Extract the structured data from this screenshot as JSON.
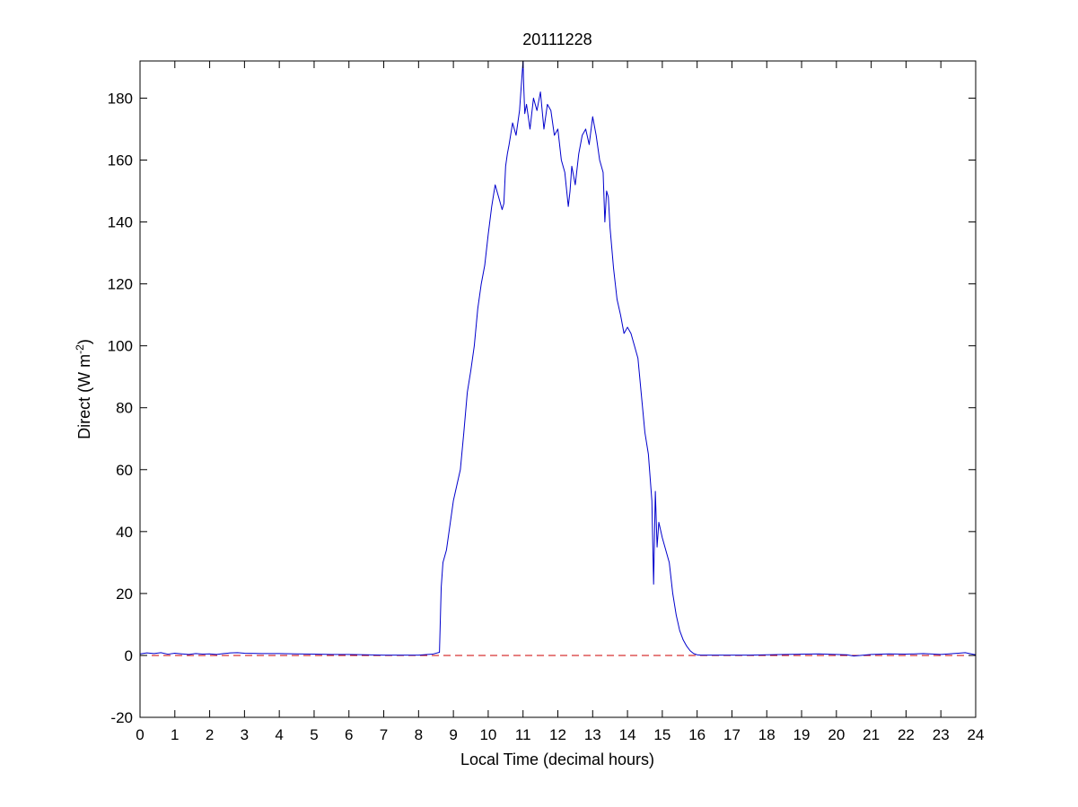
{
  "chart_data": {
    "type": "line",
    "title": "20111228",
    "xlabel": "Local Time (decimal hours)",
    "ylabel": {
      "prefix": "Direct (W m",
      "superscript": "-2",
      "suffix": ")"
    },
    "xlim": [
      0,
      24
    ],
    "ylim": [
      -20,
      192
    ],
    "xticks": [
      0,
      1,
      2,
      3,
      4,
      5,
      6,
      7,
      8,
      9,
      10,
      11,
      12,
      13,
      14,
      15,
      16,
      17,
      18,
      19,
      20,
      21,
      22,
      23,
      24
    ],
    "yticks": [
      -20,
      0,
      20,
      40,
      60,
      80,
      100,
      120,
      140,
      160,
      180
    ],
    "grid": false,
    "colors": {
      "series": "#0000cc",
      "reference_line": "#cc0000",
      "axes": "#000000"
    },
    "reference_line": {
      "y": 0,
      "style": "dashed"
    },
    "series": [
      {
        "x": [
          0,
          0.2,
          0.4,
          0.6,
          0.8,
          1.0,
          1.2,
          1.4,
          1.6,
          1.8,
          2.0,
          2.2,
          2.4,
          2.6,
          2.8,
          3.0,
          3.5,
          4.0,
          4.5,
          5.0,
          5.5,
          6.0,
          6.5,
          7.0,
          7.5,
          8.0,
          8.4,
          8.6,
          8.65,
          8.7,
          8.8,
          8.9,
          9.0,
          9.1,
          9.2,
          9.3,
          9.4,
          9.5,
          9.6,
          9.7,
          9.8,
          9.9,
          10.0,
          10.1,
          10.2,
          10.3,
          10.4,
          10.45,
          10.5,
          10.55,
          10.6,
          10.7,
          10.8,
          10.9,
          11.0,
          11.02,
          11.05,
          11.1,
          11.2,
          11.3,
          11.4,
          11.5,
          11.6,
          11.7,
          11.8,
          11.9,
          12.0,
          12.1,
          12.2,
          12.3,
          12.35,
          12.4,
          12.5,
          12.6,
          12.7,
          12.8,
          12.9,
          13.0,
          13.1,
          13.2,
          13.3,
          13.35,
          13.4,
          13.45,
          13.5,
          13.6,
          13.7,
          13.8,
          13.9,
          14.0,
          14.1,
          14.2,
          14.3,
          14.4,
          14.5,
          14.6,
          14.7,
          14.75,
          14.8,
          14.85,
          14.9,
          15.0,
          15.1,
          15.2,
          15.3,
          15.4,
          15.5,
          15.6,
          15.7,
          15.8,
          15.9,
          16.0,
          16.1,
          16.2,
          16.3,
          16.5,
          17.0,
          17.5,
          18.0,
          18.5,
          19.0,
          19.5,
          20.0,
          20.3,
          20.5,
          21.0,
          21.5,
          22.0,
          22.5,
          23.0,
          23.5,
          23.7,
          24.0
        ],
        "y": [
          0.5,
          0.8,
          0.6,
          0.9,
          0.4,
          0.7,
          0.5,
          0.3,
          0.6,
          0.4,
          0.5,
          0.3,
          0.6,
          0.8,
          0.9,
          0.7,
          0.6,
          0.6,
          0.5,
          0.4,
          0.3,
          0.3,
          0.2,
          0.1,
          0.1,
          0.1,
          0.4,
          1.0,
          22,
          30,
          34,
          42,
          50,
          55,
          60,
          72,
          85,
          92,
          100,
          112,
          120,
          126,
          136,
          145,
          152,
          148,
          144,
          146,
          158,
          162,
          165,
          172,
          168,
          176,
          192,
          184,
          175,
          178,
          170,
          180,
          176,
          182,
          170,
          178,
          176,
          168,
          170,
          160,
          156,
          145,
          150,
          158,
          152,
          162,
          168,
          170,
          165,
          174,
          168,
          160,
          156,
          140,
          150,
          148,
          138,
          125,
          115,
          110,
          104,
          106,
          104,
          100,
          96,
          84,
          72,
          65,
          50,
          23,
          53,
          35,
          43,
          38,
          34,
          30,
          20,
          13,
          8,
          5,
          3,
          1.5,
          0.6,
          0.2,
          0.1,
          0.1,
          0.1,
          0.1,
          0.1,
          0.1,
          0.2,
          0.3,
          0.4,
          0.5,
          0.3,
          0.2,
          -0.2,
          0.3,
          0.5,
          0.4,
          0.6,
          0.3,
          0.7,
          0.9,
          0.2
        ]
      }
    ]
  }
}
